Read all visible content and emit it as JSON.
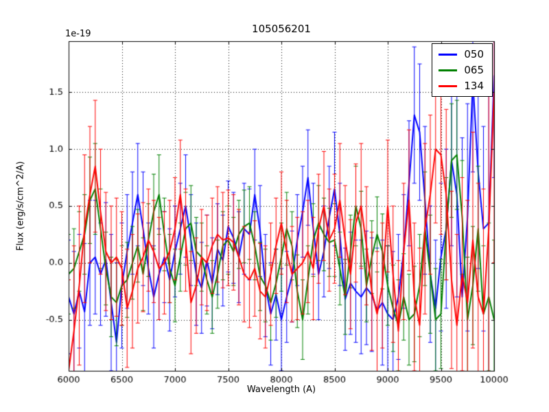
{
  "chart_data": {
    "type": "line",
    "title": "105056201",
    "xlabel": "Wavelength (A)",
    "ylabel": "Flux (erg/s/cm^2/A)",
    "offset_label": "1e-19",
    "background": "#ffffff",
    "grid": true,
    "grid_style": "dotted",
    "legend_position": "upper right",
    "xlim": [
      6000,
      10000
    ],
    "ylim": [
      -0.95,
      1.95
    ],
    "xticks": [
      6000,
      6500,
      7000,
      7500,
      8000,
      8500,
      9000,
      9500,
      10000
    ],
    "xtick_labels": [
      "6000",
      "6500",
      "7000",
      "7500",
      "8000",
      "8500",
      "9000",
      "9500",
      "10000"
    ],
    "yticks": [
      -0.5,
      0.0,
      0.5,
      1.0,
      1.5
    ],
    "ytick_labels": [
      "-0.5",
      "0.0",
      "0.5",
      "1.0",
      "1.5"
    ],
    "x": [
      6000,
      6050,
      6100,
      6150,
      6200,
      6250,
      6300,
      6350,
      6400,
      6450,
      6500,
      6550,
      6600,
      6650,
      6700,
      6750,
      6800,
      6850,
      6900,
      6950,
      7000,
      7050,
      7100,
      7150,
      7200,
      7250,
      7300,
      7350,
      7400,
      7450,
      7500,
      7550,
      7600,
      7650,
      7700,
      7750,
      7800,
      7850,
      7900,
      7950,
      8000,
      8050,
      8100,
      8150,
      8200,
      8250,
      8300,
      8350,
      8400,
      8450,
      8500,
      8550,
      8600,
      8650,
      8700,
      8750,
      8800,
      8850,
      8900,
      8950,
      9000,
      9050,
      9100,
      9150,
      9200,
      9250,
      9300,
      9350,
      9400,
      9450,
      9500,
      9550,
      9600,
      9650,
      9700,
      9750,
      9800,
      9850,
      9900,
      9950,
      10000
    ],
    "series": [
      {
        "name": "050",
        "color": "#0000ff",
        "values": [
          -0.3,
          -0.45,
          -0.25,
          -0.43,
          0.0,
          0.05,
          -0.1,
          0.03,
          -0.35,
          -0.7,
          -0.2,
          0.1,
          0.35,
          0.6,
          0.3,
          -0.05,
          -0.3,
          -0.1,
          0.05,
          -0.15,
          0.1,
          0.3,
          0.5,
          0.2,
          -0.1,
          -0.22,
          0.02,
          -0.18,
          0.12,
          0.02,
          0.32,
          0.22,
          0.05,
          0.3,
          0.25,
          0.6,
          0.28,
          -0.2,
          -0.45,
          -0.28,
          -0.5,
          -0.3,
          -0.12,
          0.2,
          0.45,
          0.75,
          0.3,
          -0.1,
          0.1,
          0.4,
          0.65,
          0.25,
          -0.32,
          -0.18,
          -0.25,
          -0.3,
          -0.22,
          -0.28,
          -0.42,
          -0.35,
          -0.45,
          -0.5,
          -0.3,
          0.1,
          0.7,
          1.3,
          1.15,
          0.55,
          -0.1,
          -0.4,
          0.05,
          0.3,
          0.9,
          0.6,
          -0.3,
          0.4,
          1.6,
          0.8,
          0.3,
          0.35,
          1.65
        ],
        "yerr": [
          0.5,
          0.55,
          0.5,
          0.6,
          0.55,
          0.5,
          0.45,
          0.5,
          0.6,
          0.7,
          0.55,
          0.5,
          0.45,
          0.45,
          0.5,
          0.4,
          0.45,
          0.4,
          0.4,
          0.45,
          0.4,
          0.4,
          0.45,
          0.4,
          0.45,
          0.4,
          0.4,
          0.4,
          0.4,
          0.4,
          0.4,
          0.4,
          0.4,
          0.4,
          0.4,
          0.4,
          0.4,
          0.45,
          0.45,
          0.4,
          0.45,
          0.4,
          0.4,
          0.4,
          0.4,
          0.42,
          0.4,
          0.4,
          0.4,
          0.45,
          0.5,
          0.45,
          0.45,
          0.45,
          0.45,
          0.5,
          0.5,
          0.5,
          0.55,
          0.55,
          0.6,
          0.6,
          0.55,
          0.5,
          0.55,
          0.6,
          0.6,
          0.65,
          0.6,
          0.6,
          0.65,
          0.7,
          0.75,
          0.9,
          1.4,
          1.0,
          0.8,
          0.85,
          0.9,
          1.5,
          0.9
        ]
      },
      {
        "name": "065",
        "color": "#008000",
        "values": [
          -0.1,
          -0.05,
          0.1,
          0.25,
          0.55,
          0.65,
          0.3,
          -0.05,
          -0.3,
          -0.35,
          -0.2,
          -0.15,
          0.0,
          0.15,
          -0.1,
          0.2,
          0.45,
          0.6,
          0.25,
          -0.05,
          -0.2,
          0.05,
          0.3,
          0.35,
          0.1,
          0.05,
          -0.15,
          -0.3,
          -0.1,
          0.15,
          0.2,
          0.1,
          0.25,
          0.32,
          0.35,
          0.15,
          -0.12,
          -0.2,
          -0.35,
          -0.18,
          0.05,
          0.3,
          0.15,
          -0.25,
          -0.5,
          -0.15,
          0.2,
          0.35,
          0.25,
          0.18,
          0.2,
          -0.05,
          -0.3,
          0.1,
          0.5,
          0.3,
          -0.2,
          0.05,
          0.25,
          0.1,
          -0.2,
          -0.4,
          -0.55,
          -0.3,
          -0.5,
          -0.45,
          -0.2,
          0.3,
          -0.1,
          -0.5,
          -0.45,
          0.3,
          0.9,
          0.95,
          0.4,
          -0.5,
          -0.2,
          0.3,
          -0.45,
          -0.3,
          -0.5
        ],
        "yerr": [
          0.35,
          0.35,
          0.35,
          0.35,
          0.38,
          0.4,
          0.35,
          0.32,
          0.35,
          0.38,
          0.35,
          0.33,
          0.32,
          0.32,
          0.32,
          0.32,
          0.33,
          0.35,
          0.32,
          0.3,
          0.32,
          0.3,
          0.32,
          0.33,
          0.3,
          0.3,
          0.3,
          0.32,
          0.3,
          0.3,
          0.3,
          0.3,
          0.3,
          0.32,
          0.32,
          0.3,
          0.3,
          0.32,
          0.33,
          0.3,
          0.3,
          0.32,
          0.3,
          0.32,
          0.35,
          0.3,
          0.32,
          0.33,
          0.32,
          0.3,
          0.32,
          0.32,
          0.33,
          0.32,
          0.35,
          0.33,
          0.32,
          0.32,
          0.33,
          0.33,
          0.35,
          0.38,
          0.4,
          0.38,
          0.4,
          0.42,
          0.45,
          0.5,
          0.52,
          0.45,
          0.48,
          0.45,
          0.5,
          0.48,
          0.5,
          0.55,
          0.52,
          0.55,
          0.6,
          0.65,
          0.7
        ]
      },
      {
        "name": "134",
        "color": "#ff0000",
        "values": [
          -0.95,
          -0.6,
          -0.2,
          0.3,
          0.6,
          0.85,
          0.45,
          0.1,
          0.0,
          0.05,
          -0.05,
          -0.4,
          -0.25,
          -0.05,
          0.05,
          0.2,
          0.1,
          -0.05,
          0.0,
          0.1,
          0.3,
          0.6,
          0.2,
          -0.35,
          -0.2,
          0.05,
          0.0,
          0.15,
          0.25,
          0.2,
          0.22,
          0.18,
          0.05,
          -0.1,
          -0.15,
          -0.05,
          -0.25,
          -0.3,
          -0.1,
          0.15,
          0.35,
          0.1,
          -0.1,
          -0.05,
          0.0,
          0.1,
          -0.05,
          0.3,
          0.5,
          0.2,
          0.3,
          0.55,
          0.2,
          -0.1,
          0.35,
          0.5,
          0.15,
          -0.25,
          -0.45,
          -0.2,
          0.5,
          -0.1,
          -0.6,
          0.1,
          0.55,
          -0.3,
          -0.55,
          0.3,
          0.6,
          1.0,
          0.95,
          0.6,
          -0.15,
          -0.55,
          -0.1,
          -0.35,
          0.2,
          -0.3,
          -0.45,
          0.3,
          1.5
        ],
        "yerr": [
          0.8,
          0.75,
          0.7,
          0.65,
          0.6,
          0.58,
          0.55,
          0.52,
          0.5,
          0.52,
          0.5,
          0.52,
          0.5,
          0.48,
          0.48,
          0.45,
          0.45,
          0.45,
          0.45,
          0.45,
          0.45,
          0.48,
          0.45,
          0.45,
          0.42,
          0.42,
          0.42,
          0.42,
          0.42,
          0.42,
          0.42,
          0.42,
          0.42,
          0.42,
          0.42,
          0.42,
          0.42,
          0.45,
          0.45,
          0.42,
          0.45,
          0.45,
          0.42,
          0.45,
          0.45,
          0.45,
          0.45,
          0.48,
          0.48,
          0.45,
          0.48,
          0.5,
          0.48,
          0.48,
          0.52,
          0.55,
          0.52,
          0.52,
          0.55,
          0.55,
          0.58,
          0.6,
          0.62,
          0.6,
          0.62,
          0.65,
          0.68,
          0.75,
          0.7,
          0.65,
          0.7,
          0.75,
          0.78,
          0.8,
          0.85,
          0.9,
          0.95,
          1.0,
          1.1,
          1.3,
          1.5
        ]
      }
    ]
  }
}
